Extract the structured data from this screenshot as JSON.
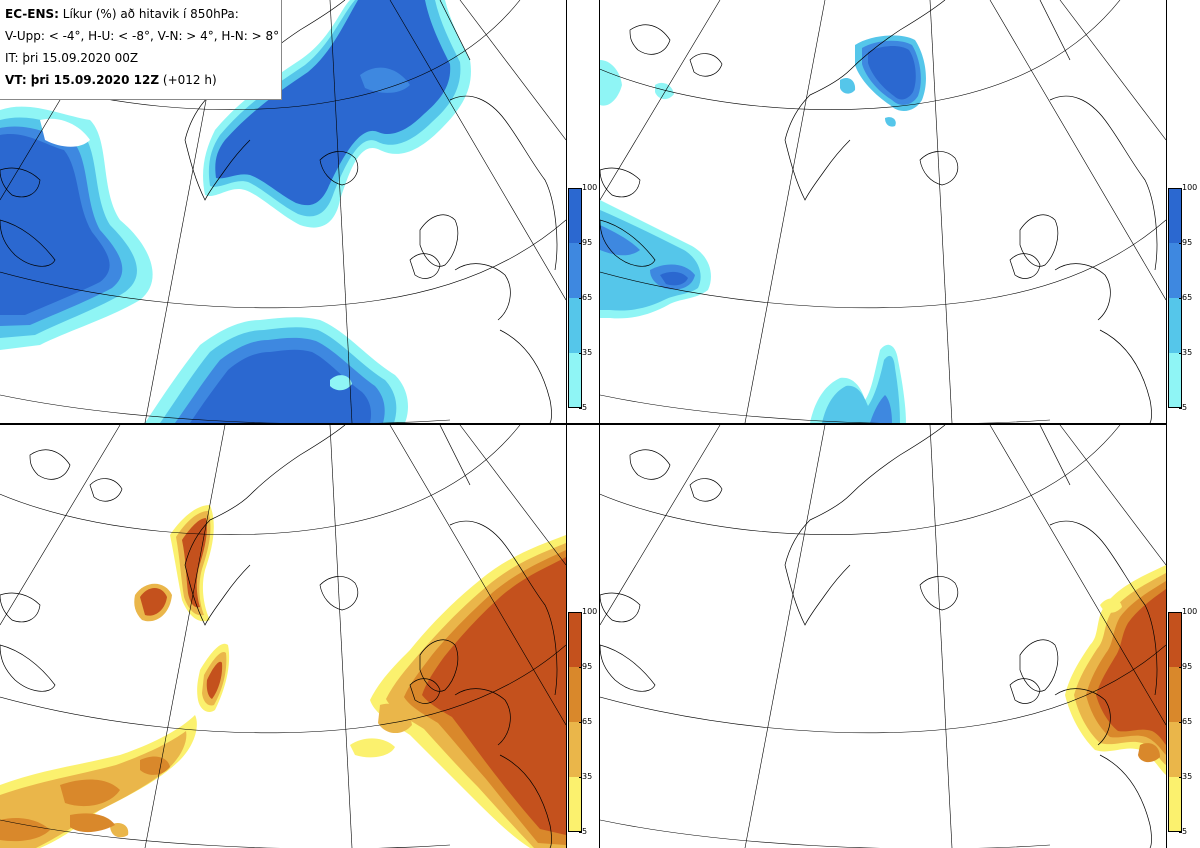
{
  "header": {
    "model_label": "EC-ENS:",
    "title_text": "Líkur (%) að hitavik í 850hPa:",
    "thresholds": "V-Upp: < -4°, H-U: < -8°, V-N: > 4°, H-N: > 8°",
    "init_time": "IT: þri 15.09.2020 00Z",
    "valid_label": "VT: þri 15.09.2020 12Z",
    "lead": "(+012 h)"
  },
  "colorbars": {
    "cold": {
      "ticks": [
        "100",
        "95",
        "65",
        "35",
        "5"
      ],
      "colors": [
        "#2b68d0",
        "#3e88e0",
        "#55c6ea",
        "#8ff5f5"
      ]
    },
    "warm": {
      "ticks": [
        "100",
        "95",
        "65",
        "35",
        "5"
      ],
      "colors": [
        "#c4511d",
        "#d9882b",
        "#eab64a",
        "#fbf16e"
      ]
    }
  },
  "panels": [
    {
      "name": "upper-left",
      "quadrant": "V-Upp",
      "palette": "cold"
    },
    {
      "name": "upper-right",
      "quadrant": "H-U",
      "palette": "cold"
    },
    {
      "name": "lower-left",
      "quadrant": "V-N",
      "palette": "warm"
    },
    {
      "name": "lower-right",
      "quadrant": "H-N",
      "palette": "warm"
    }
  ]
}
